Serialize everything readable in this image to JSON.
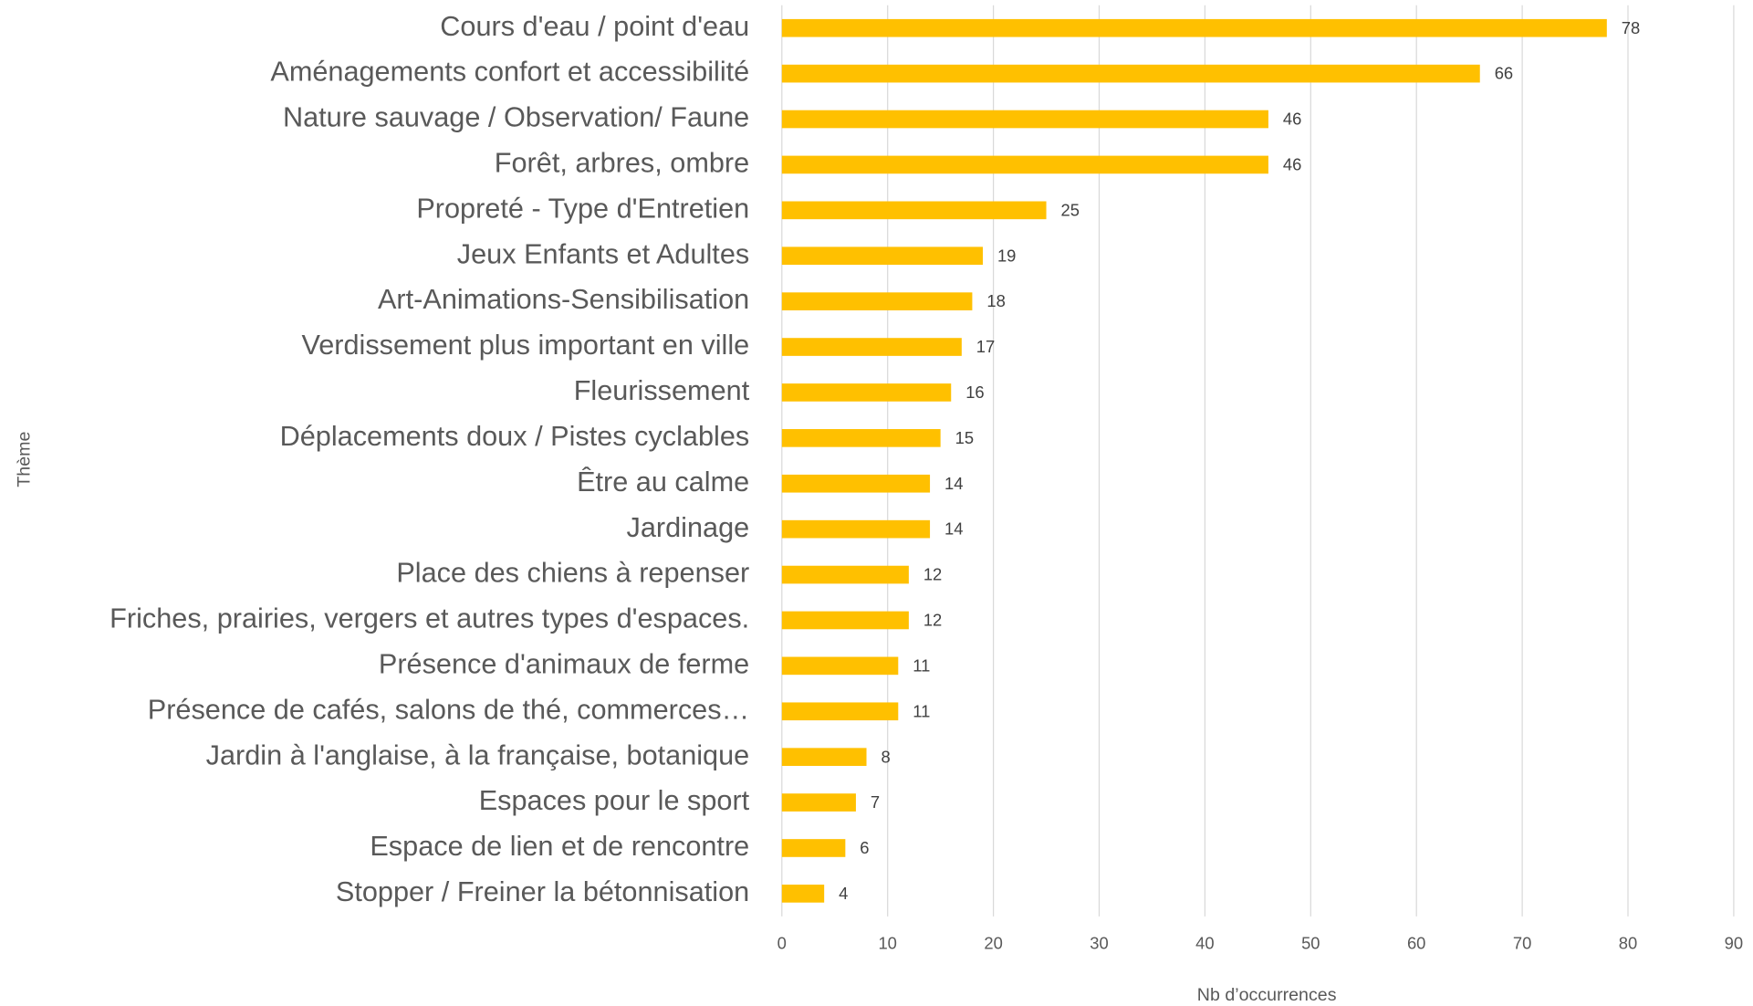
{
  "chart_data": {
    "type": "barh",
    "x_label": "Nb d’occurrences",
    "y_label": "Thème",
    "categories": [
      "Cours d'eau / point d'eau",
      "Aménagements confort et accessibilité",
      "Nature sauvage / Observation/ Faune",
      "Forêt, arbres, ombre",
      "Propreté - Type d'Entretien",
      "Jeux Enfants et Adultes",
      "Art-Animations-Sensibilisation",
      "Verdissement plus important en ville",
      "Fleurissement",
      "Déplacements doux / Pistes cyclables",
      "Être au calme",
      "Jardinage",
      "Place des chiens à repenser",
      "Friches, prairies, vergers et autres types d'espaces.",
      "Présence d'animaux de ferme",
      "Présence de cafés, salons de thé, commerces…",
      "Jardin à l'anglaise, à la française, botanique",
      "Espaces pour le sport",
      "Espace de lien et de rencontre",
      "Stopper / Freiner la bétonnisation"
    ],
    "values": [
      78,
      66,
      46,
      46,
      25,
      19,
      18,
      17,
      16,
      15,
      14,
      14,
      12,
      12,
      11,
      11,
      8,
      7,
      6,
      4
    ],
    "color": "#ffc000",
    "xlim": [
      0,
      90
    ],
    "xticks": [
      0,
      10,
      20,
      30,
      40,
      50,
      60,
      70,
      80,
      90
    ],
    "grid": true
  }
}
